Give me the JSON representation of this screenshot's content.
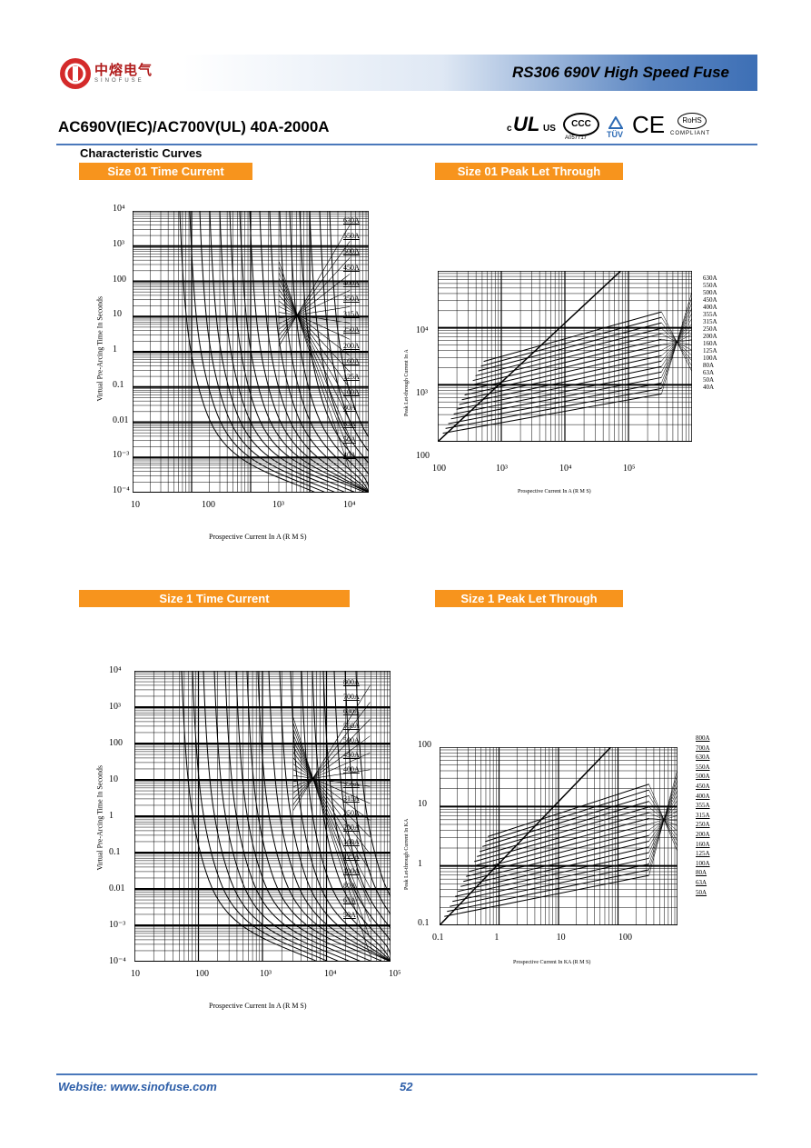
{
  "header": {
    "title": "RS306 690V High Speed Fuse",
    "logo_cn": "中熔电气",
    "logo_en": "SINOFUSE"
  },
  "subtitle": "AC690V(IEC)/AC700V(UL) 40A-2000A",
  "certs": [
    "c",
    "UL",
    "US",
    "CCC",
    "A057717",
    "TÜV",
    "CE",
    "RoHS",
    "COMPLIANT"
  ],
  "section_title": "Characteristic Curves",
  "charts": {
    "c1": {
      "tag": "Size 01 Time Current",
      "xticks": [
        "10",
        "100",
        "10³",
        "10⁴"
      ],
      "yticks": [
        "10⁴",
        "10³",
        "100",
        "10",
        "1",
        "0.1",
        "0.01",
        "10⁻³",
        "10⁻⁴"
      ],
      "xlabel": "Prospective Current In A (R M S)",
      "ylabel": "Virtual Pre-Arcing Time In Seconds",
      "ratings": [
        "630A",
        "550A",
        "500A",
        "450A",
        "400A",
        "350A",
        "315A",
        "250A",
        "200A",
        "160A",
        "125A",
        "100A",
        "80A",
        "63A",
        "50A",
        "40A"
      ]
    },
    "c2": {
      "tag": "Size 01 Peak Let Through",
      "xticks": [
        "100",
        "10³",
        "10⁴",
        "10⁵"
      ],
      "yticks": [
        "10⁴",
        "10³",
        "100"
      ],
      "xlabel": "Prospective Current In A (R M S)",
      "ylabel": "Peak Let-through Current In A",
      "ratings": [
        "630A",
        "550A",
        "500A",
        "450A",
        "400A",
        "355A",
        "315A",
        "250A",
        "200A",
        "160A",
        "125A",
        "100A",
        "80A",
        "63A",
        "50A",
        "40A"
      ]
    },
    "c3": {
      "tag": "Size 1 Time Current",
      "xticks": [
        "10",
        "100",
        "10³",
        "10⁴",
        "10⁵"
      ],
      "yticks": [
        "10⁴",
        "10³",
        "100",
        "10",
        "1",
        "0.1",
        "0.01",
        "10⁻³",
        "10⁻⁴"
      ],
      "xlabel": "Prospective Current In A (R M S)",
      "ylabel": "Virtual Pre-Arcing Time In Seconds",
      "ratings": [
        "800A",
        "700A",
        "630A",
        "550A",
        "500A",
        "450A",
        "400A",
        "355A",
        "315A",
        "250A",
        "200A",
        "160A",
        "125A",
        "100A",
        "80A",
        "63A",
        "50A"
      ]
    },
    "c4": {
      "tag": "Size 1 Peak Let Through",
      "xticks": [
        "0.1",
        "1",
        "10",
        "100"
      ],
      "yticks": [
        "100",
        "10",
        "1",
        "0.1"
      ],
      "xlabel": "Prospective Current In KA (R M S)",
      "ylabel": "Peak Let-through Current In KA",
      "ratings": [
        "800A",
        "700A",
        "630A",
        "550A",
        "500A",
        "450A",
        "400A",
        "355A",
        "315A",
        "250A",
        "200A",
        "160A",
        "125A",
        "100A",
        "80A",
        "63A",
        "50A"
      ]
    }
  },
  "footer": {
    "website": "Website: www.sinofuse.com",
    "page": "52"
  }
}
